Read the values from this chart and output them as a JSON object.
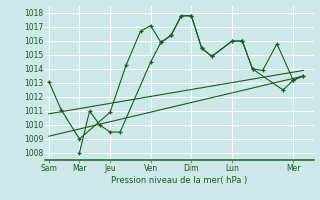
{
  "background_color": "#cde8e8",
  "grid_color": "#b8d8d8",
  "line_color": "#1a5c1a",
  "marker_color": "#1a5c1a",
  "ylabel_values": [
    1008,
    1009,
    1010,
    1011,
    1012,
    1013,
    1014,
    1015,
    1016,
    1017,
    1018
  ],
  "xlabel": "Pression niveau de la mer( hPa )",
  "xtick_labels": [
    "Sam",
    "Mar",
    "Jeu",
    "Ven",
    "Dim",
    "Lun",
    "Mer"
  ],
  "xtick_positions": [
    0,
    1.5,
    3.0,
    5.0,
    7.0,
    9.0,
    12.0
  ],
  "ylim": [
    1007.5,
    1018.5
  ],
  "xlim": [
    -0.2,
    13.0
  ],
  "series1": {
    "x": [
      0.0,
      0.6,
      1.5,
      3.0,
      3.8,
      4.5,
      5.0,
      5.5,
      6.0,
      6.5,
      7.0,
      7.5,
      8.0,
      9.0,
      9.5,
      10.0,
      10.5,
      11.2,
      12.0,
      12.5
    ],
    "y": [
      1013.1,
      1011.1,
      1009.0,
      1010.9,
      1014.3,
      1016.7,
      1017.1,
      1015.9,
      1016.4,
      1017.8,
      1017.8,
      1015.5,
      1014.9,
      1016.0,
      1016.0,
      1014.0,
      1013.9,
      1015.8,
      1013.2,
      1013.5
    ]
  },
  "series2": {
    "x": [
      1.5,
      2.0,
      2.5,
      3.0,
      3.5,
      5.0,
      5.5,
      6.0,
      6.5,
      7.0,
      7.5,
      8.0,
      9.0,
      9.5,
      10.0,
      11.5,
      12.0,
      12.5
    ],
    "y": [
      1008.0,
      1011.0,
      1010.0,
      1009.5,
      1009.5,
      1014.5,
      1015.9,
      1016.4,
      1017.8,
      1017.8,
      1015.5,
      1014.9,
      1016.0,
      1016.0,
      1014.0,
      1012.5,
      1013.2,
      1013.5
    ]
  },
  "line1": {
    "x": [
      0.0,
      12.5
    ],
    "y": [
      1010.8,
      1013.9
    ]
  },
  "line2": {
    "x": [
      0.0,
      12.5
    ],
    "y": [
      1009.2,
      1013.5
    ]
  }
}
